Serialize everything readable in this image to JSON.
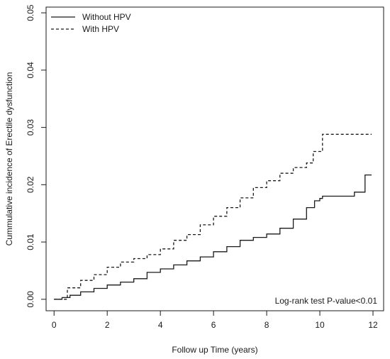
{
  "chart_data": {
    "type": "line",
    "title": "",
    "xlabel": "Follow up Time (years)",
    "ylabel": "Cummulative incidence of Erectile dysfunction",
    "xlim": [
      -0.3,
      12.4
    ],
    "ylim": [
      -0.002,
      0.051
    ],
    "x_ticks": [
      0,
      2,
      4,
      6,
      8,
      10,
      12
    ],
    "x_tick_labels": [
      "0",
      "2",
      "4",
      "6",
      "8",
      "10",
      "12"
    ],
    "y_ticks": [
      0.0,
      0.01,
      0.02,
      0.03,
      0.04,
      0.05
    ],
    "y_tick_labels": [
      "0.00",
      "0.01",
      "0.02",
      "0.03",
      "0.04",
      "0.05"
    ],
    "grid": false,
    "legend_position": "top-left",
    "annotation": "Log-rank test P-value<0.01",
    "series": [
      {
        "name": "Without HPV",
        "line_style": "solid",
        "color": "#1a1a1a",
        "x": [
          0,
          0.3,
          0.6,
          1.0,
          1.5,
          2.0,
          2.5,
          3.0,
          3.5,
          4.0,
          4.5,
          5.0,
          5.5,
          6.0,
          6.5,
          7.0,
          7.5,
          8.0,
          8.5,
          9.0,
          9.5,
          9.8,
          10.0,
          10.1,
          10.6,
          11.3,
          11.6,
          11.7,
          11.95
        ],
        "y": [
          0.0,
          0.0003,
          0.0007,
          0.0013,
          0.0019,
          0.0025,
          0.003,
          0.0036,
          0.0047,
          0.0053,
          0.006,
          0.0067,
          0.0074,
          0.0083,
          0.0092,
          0.0103,
          0.0108,
          0.0114,
          0.0124,
          0.014,
          0.016,
          0.0172,
          0.0176,
          0.018,
          0.018,
          0.0187,
          0.0187,
          0.0217,
          0.0217
        ]
      },
      {
        "name": "With HPV",
        "line_style": "dashed",
        "color": "#1a1a1a",
        "x": [
          0,
          0.5,
          1.0,
          1.5,
          2.0,
          2.5,
          3.0,
          3.5,
          4.0,
          4.5,
          5.0,
          5.5,
          6.0,
          6.5,
          7.0,
          7.5,
          8.0,
          8.5,
          9.0,
          9.5,
          9.75,
          10.1,
          11.95
        ],
        "y": [
          0.0,
          0.002,
          0.0033,
          0.0043,
          0.0056,
          0.0065,
          0.0071,
          0.0078,
          0.0088,
          0.0103,
          0.0113,
          0.013,
          0.0145,
          0.016,
          0.0177,
          0.0195,
          0.0207,
          0.022,
          0.023,
          0.0238,
          0.0258,
          0.0288,
          0.0288
        ]
      }
    ]
  }
}
